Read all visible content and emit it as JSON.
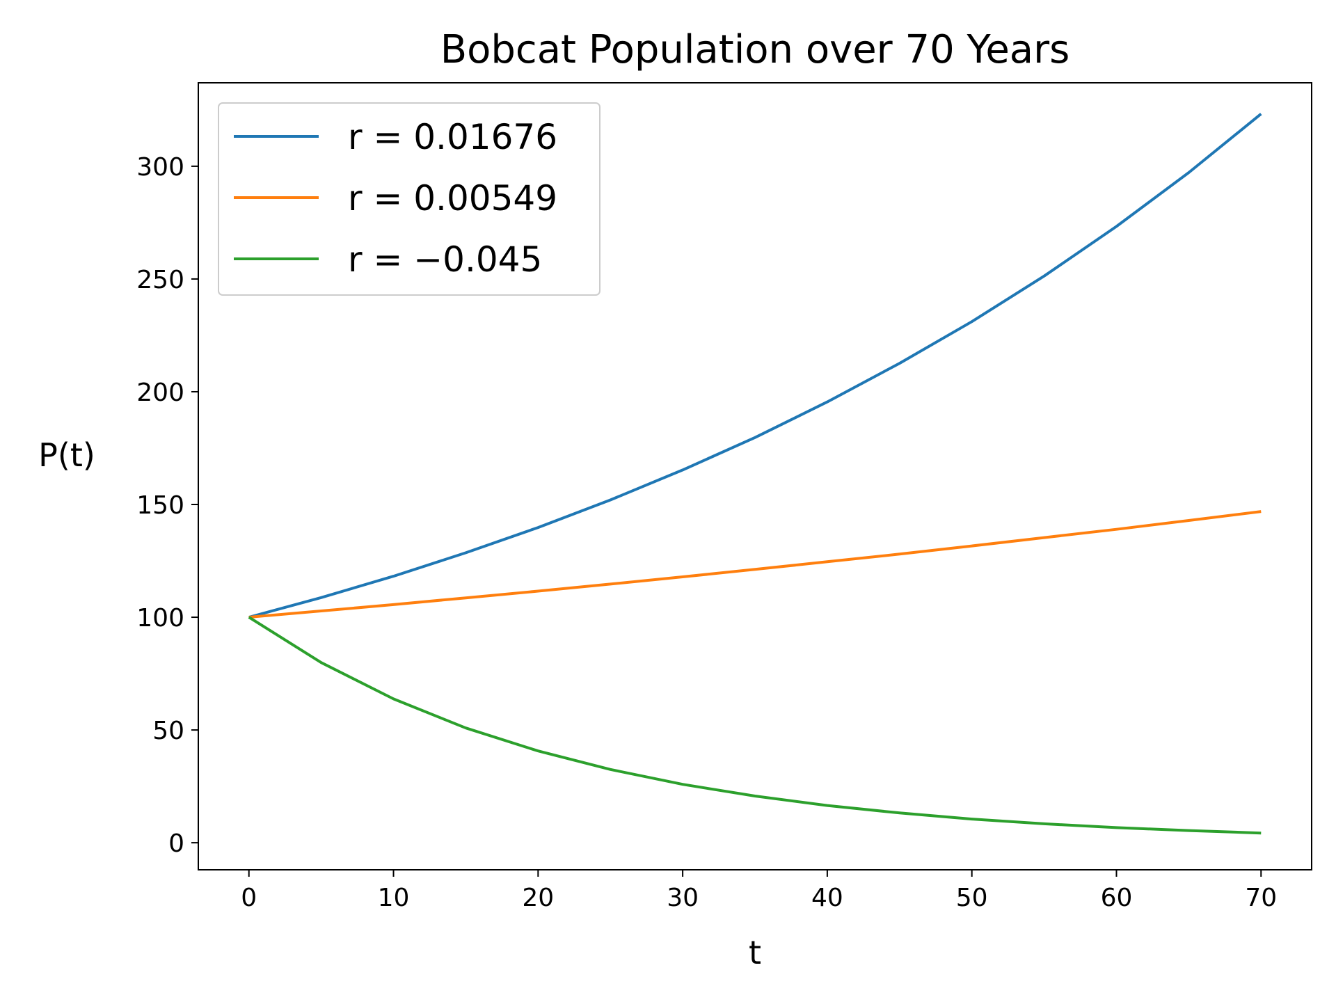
{
  "chart_data": {
    "type": "line",
    "title": "Bobcat Population over 70 Years",
    "xlabel": "t",
    "ylabel": "P(t)",
    "xlim": [
      -3.5,
      73.5
    ],
    "ylim": [
      -12,
      337
    ],
    "xticks": [
      0,
      10,
      20,
      30,
      40,
      50,
      60,
      70
    ],
    "yticks": [
      0,
      50,
      100,
      150,
      200,
      250,
      300
    ],
    "grid": false,
    "legend_position": "top-left",
    "x": [
      0,
      5,
      10,
      15,
      20,
      25,
      30,
      35,
      40,
      45,
      50,
      55,
      60,
      65,
      70
    ],
    "series": [
      {
        "name": "r = 0.01676",
        "color": "#1f77b4",
        "values": [
          100,
          108.7,
          118.2,
          128.6,
          139.8,
          152.0,
          165.3,
          179.7,
          195.5,
          212.6,
          231.1,
          251.3,
          273.3,
          297.2,
          323.2
        ]
      },
      {
        "name": "r = 0.00549",
        "color": "#ff7f0e",
        "values": [
          100,
          102.8,
          105.6,
          108.6,
          111.6,
          114.7,
          117.9,
          121.2,
          124.6,
          128.0,
          131.6,
          135.3,
          139.0,
          142.9,
          146.9
        ]
      },
      {
        "name": "r = −0.045",
        "color": "#2ca02c",
        "values": [
          100,
          79.9,
          63.8,
          50.9,
          40.7,
          32.5,
          25.9,
          20.7,
          16.5,
          13.2,
          10.5,
          8.4,
          6.7,
          5.4,
          4.3
        ]
      }
    ]
  }
}
